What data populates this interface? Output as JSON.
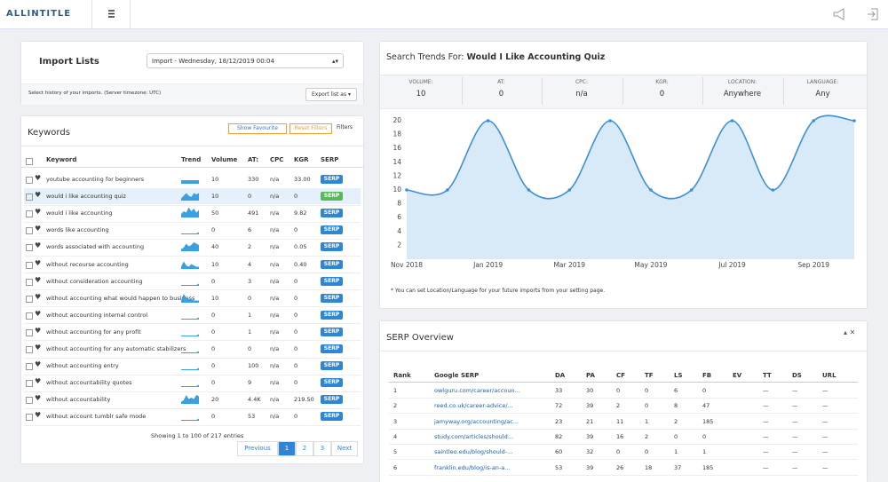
{
  "header": {
    "logo": "ALLINTITLE"
  },
  "import_lists": {
    "title": "Import Lists",
    "select": "Import - Wednesday, 18/12/2019 00:04",
    "hint": "Select history of your imports. (Server timezone: UTC)",
    "export": "Export list as"
  },
  "keywords": {
    "title": "Keywords",
    "buttons": [
      "Show Favourite",
      "Reset Filters",
      "Filters"
    ],
    "columns": [
      "Keyword",
      "Trend",
      "Volume",
      "AT:",
      "CPC",
      "KGR",
      "SERP"
    ],
    "rows": [
      [
        "youtube accounting for beginners",
        "10",
        "330",
        "n/a",
        "33.00",
        "SERP"
      ],
      [
        "would i like accounting quiz",
        "10",
        "0",
        "n/a",
        "0",
        "SERP"
      ],
      [
        "would i like accounting",
        "50",
        "491",
        "n/a",
        "9.82",
        "SERP"
      ],
      [
        "words like accounting",
        "0",
        "6",
        "n/a",
        "0",
        "SERP"
      ],
      [
        "words associated with accounting",
        "40",
        "2",
        "n/a",
        "0.05",
        "SERP"
      ],
      [
        "without recourse accounting",
        "10",
        "4",
        "n/a",
        "0.40",
        "SERP"
      ],
      [
        "without consideration accounting",
        "0",
        "3",
        "n/a",
        "0",
        "SERP"
      ],
      [
        "without accounting what would happen to business",
        "10",
        "0",
        "n/a",
        "0",
        "SERP"
      ],
      [
        "without accounting internal control",
        "0",
        "1",
        "n/a",
        "0",
        "SERP"
      ],
      [
        "without accounting for any profit",
        "0",
        "1",
        "n/a",
        "0",
        "SERP"
      ],
      [
        "without accounting for any automatic stabilizers",
        "0",
        "0",
        "n/a",
        "0",
        "SERP"
      ],
      [
        "without accounting entry",
        "0",
        "100",
        "n/a",
        "0",
        "SERP"
      ],
      [
        "without accountability quotes",
        "0",
        "9",
        "n/a",
        "0",
        "SERP"
      ],
      [
        "without accountability",
        "20",
        "4.4K",
        "n/a",
        "219.50",
        "SERP"
      ],
      [
        "without account tumblr safe mode",
        "0",
        "53",
        "n/a",
        "0",
        "SERP"
      ]
    ],
    "footer": "Showing 1 to 100 of 217 entries",
    "pagination": [
      "Previous",
      "1",
      "2",
      "3",
      "Next"
    ]
  },
  "trends": {
    "title_prefix": "Search Trends For:",
    "keyword": "Would I Like Accounting Quiz",
    "stats": [
      {
        "label": "VOLUME:",
        "value": "10"
      },
      {
        "label": "AT:",
        "value": "0"
      },
      {
        "label": "CPC:",
        "value": "n/a"
      },
      {
        "label": "KGR:",
        "value": "0"
      },
      {
        "label": "LOCATION:",
        "value": "Anywhere"
      },
      {
        "label": "LANGUAGE:",
        "value": "Any"
      }
    ],
    "note": "* You can set Location/Language for your future imports from your setting page."
  },
  "chart_data": {
    "type": "line",
    "categories": [
      "Nov 2018",
      null,
      "Jan 2019",
      null,
      "Mar 2019",
      null,
      "May 2019",
      null,
      "Jul 2019",
      null,
      "Sep 2019",
      null
    ],
    "values": [
      10,
      10,
      20,
      10,
      10,
      20,
      10,
      10,
      20,
      10,
      20,
      20
    ],
    "ylim": [
      0,
      20
    ],
    "yticks": [
      2,
      4,
      6,
      8,
      10,
      12,
      14,
      16,
      18,
      20
    ],
    "color": "#3d8fd8",
    "area_color": "#d8e9f8",
    "grid": false
  },
  "serp": {
    "title": "SERP Overview",
    "columns": [
      "Rank",
      "Google SERP",
      "DA",
      "PA",
      "CF",
      "TF",
      "LS",
      "FB",
      "EV",
      "TT",
      "DS",
      "URL"
    ],
    "rows": [
      [
        "1",
        "owlguru.com/career/accoun...",
        "33",
        "30",
        "0",
        "0",
        "6",
        "0",
        null,
        "—",
        "—",
        "—"
      ],
      [
        "2",
        "reed.co.uk/career-advice/...",
        "72",
        "39",
        "2",
        "0",
        "8",
        "47",
        null,
        "—",
        "—",
        "—"
      ],
      [
        "3",
        "jamyway.org/accounting/ac...",
        "23",
        "21",
        "11",
        "1",
        "2",
        "185",
        null,
        "—",
        "—",
        "—"
      ],
      [
        "4",
        "study.com/articles/should...",
        "82",
        "39",
        "16",
        "2",
        "0",
        "0",
        null,
        "—",
        "—",
        "—"
      ],
      [
        "5",
        "saintleo.edu/blog/should-...",
        "60",
        "32",
        "0",
        "0",
        "1",
        "1",
        null,
        "—",
        "—",
        "—"
      ],
      [
        "6",
        "franklin.edu/blog/is-an-a...",
        "53",
        "39",
        "26",
        "18",
        "37",
        "185",
        null,
        "—",
        "—",
        "—"
      ]
    ]
  }
}
